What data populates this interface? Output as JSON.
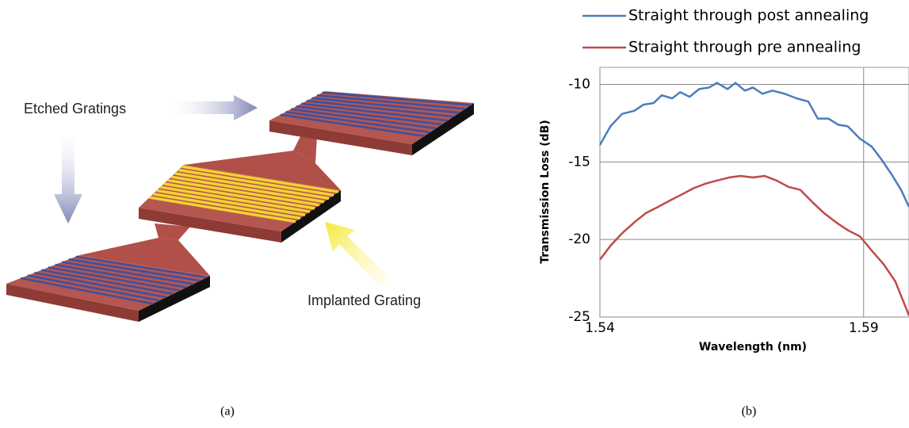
{
  "diagram": {
    "labels": [
      "Etched Gratings",
      "Implanted Grating"
    ],
    "caption": "(a)"
  },
  "chart_data": {
    "type": "line",
    "caption": "(b)",
    "xlabel": "Wavelength (nm)",
    "ylabel": "Transmission Loss (dB)",
    "xlim": [
      1.54,
      1.5986
    ],
    "ylim": [
      -25,
      -8.9
    ],
    "xticks": [
      1.54,
      1.59
    ],
    "yticks": [
      -10,
      -15,
      -20,
      -25
    ],
    "grid": true,
    "legend": "top",
    "series": [
      {
        "name": "Straight through post annealing",
        "color": "#4a7ebb",
        "x": [
          1.54,
          1.542,
          1.5442,
          1.5465,
          1.5483,
          1.5502,
          1.5517,
          1.5537,
          1.5552,
          1.557,
          1.5588,
          1.5607,
          1.5622,
          1.5642,
          1.5657,
          1.5675,
          1.569,
          1.5708,
          1.5727,
          1.575,
          1.5773,
          1.5795,
          1.5813,
          1.5833,
          1.5852,
          1.587,
          1.5893,
          1.5915,
          1.5933,
          1.5953,
          1.5971,
          1.5986
        ],
        "values": [
          -13.9,
          -12.7,
          -11.9,
          -11.7,
          -11.3,
          -11.2,
          -10.7,
          -10.9,
          -10.5,
          -10.8,
          -10.3,
          -10.2,
          -9.9,
          -10.3,
          -9.9,
          -10.4,
          -10.2,
          -10.6,
          -10.4,
          -10.6,
          -10.9,
          -11.1,
          -12.2,
          -12.2,
          -12.6,
          -12.7,
          -13.5,
          -14.0,
          -14.8,
          -15.8,
          -16.8,
          -17.9
        ]
      },
      {
        "name": "Straight through pre annealing",
        "color": "#be4b48",
        "x": [
          1.54,
          1.542,
          1.5442,
          1.5465,
          1.5487,
          1.551,
          1.5532,
          1.5555,
          1.5577,
          1.56,
          1.5622,
          1.5645,
          1.5667,
          1.569,
          1.5712,
          1.5735,
          1.5757,
          1.578,
          1.5803,
          1.5825,
          1.5848,
          1.587,
          1.5893,
          1.5915,
          1.5938,
          1.596,
          1.5986
        ],
        "values": [
          -21.3,
          -20.4,
          -19.6,
          -18.9,
          -18.3,
          -17.9,
          -17.5,
          -17.1,
          -16.7,
          -16.4,
          -16.2,
          -16.0,
          -15.9,
          -16.0,
          -15.9,
          -16.2,
          -16.6,
          -16.8,
          -17.6,
          -18.3,
          -18.9,
          -19.4,
          -19.8,
          -20.7,
          -21.6,
          -22.7,
          -24.9
        ]
      }
    ]
  }
}
